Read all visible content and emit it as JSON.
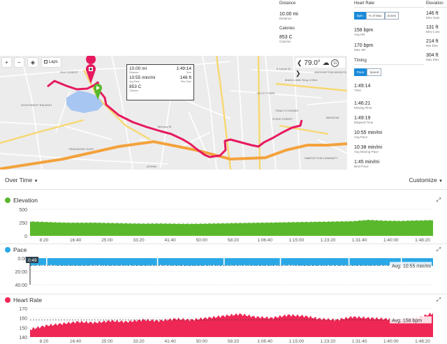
{
  "stats": {
    "distance": {
      "head": "Distance",
      "value": "10.00 mi",
      "sub": "Distance"
    },
    "calories": {
      "head": "Calories",
      "value": "853 C",
      "sub": "Calories"
    }
  },
  "heart_rate": {
    "head": "Heart Rate",
    "tabs": [
      "bpm",
      "% of Max",
      "Zones"
    ],
    "avg": {
      "value": "158 bpm",
      "sub": "Avg HR"
    },
    "max": {
      "value": "170 bpm",
      "sub": "Max HR"
    }
  },
  "timing": {
    "head": "Timing",
    "tabs": [
      "Pace",
      "Speed"
    ],
    "rows": [
      {
        "value": "1:49:14",
        "sub": "Time"
      },
      {
        "value": "1:46:21",
        "sub": "Moving Time"
      },
      {
        "value": "1:49:19",
        "sub": "Elapsed Time"
      },
      {
        "value": "10:55 min/mi",
        "sub": "Avg Pace"
      },
      {
        "value": "10:38 min/mi",
        "sub": "Avg Moving Pace"
      },
      {
        "value": "1:45 min/mi",
        "sub": "Best Pace"
      }
    ]
  },
  "elevation": {
    "head": "Elevation",
    "rows": [
      {
        "value": "146 ft",
        "sub": "Elev Gain"
      },
      {
        "value": "131 ft",
        "sub": "Elev Loss"
      },
      {
        "value": "214 ft",
        "sub": "Min Elev"
      },
      {
        "value": "304 ft",
        "sub": "Max Elev"
      }
    ]
  },
  "map": {
    "zoom_in": "+",
    "zoom_out": "−",
    "laps_label": "Laps",
    "temperature": "79.0°",
    "wind": "11",
    "places": {
      "isle_forest": "ISLE FOREST",
      "washington_heights": "WASHINGTON HEIGHTS",
      "south_park": "SOUTH PARK",
      "trails_corner": "TRAIL'S CORNER",
      "southwest_raleigh": "SOUTHWEST RALEIGH",
      "trailwood_glen": "TRAILWOOD GLEN",
      "atkins": "ATKINS",
      "meadow": "MEADOW",
      "habitat": "HABITAT FOR HUMANITY",
      "state_street": "STATE STREET",
      "forest_hills": "FOREST HILLS",
      "e_lenoir": "E Lenoir St",
      "mlk": "Martin Luther King Jr Blvd",
      "mercury": "Mercury St"
    },
    "popup": {
      "rows": [
        {
          "left": "10.00 mi",
          "left_sub": "Distance",
          "right": "1:49:14",
          "right_sub": "Time"
        },
        {
          "left": "10:55 min/mi",
          "left_sub": "Avg Pace",
          "right": "146 ft",
          "right_sub": "Elev Gain"
        },
        {
          "left": "853 C",
          "left_sub": "Calories",
          "right": "",
          "right_sub": ""
        }
      ]
    }
  },
  "over_time": {
    "label": "Over Time",
    "customize": "Customize"
  },
  "charts": {
    "colors": {
      "elevation": "#5ab82c",
      "pace": "#2aa8e6",
      "heart_rate": "#ee2755"
    },
    "x_ticks": [
      "8:20",
      "16:40",
      "25:00",
      "33:20",
      "41:40",
      "50:00",
      "58:20",
      "1:06:40",
      "1:15:00",
      "1:23:20",
      "1:31:40",
      "1:40:00",
      "1:48:20"
    ]
  },
  "chart_data": [
    {
      "type": "area",
      "title": "Elevation",
      "yticks": [
        "500",
        "250",
        "0"
      ],
      "ylim": [
        0,
        500
      ],
      "series": [
        {
          "values": [
            270,
            260,
            250,
            245,
            248,
            240,
            235,
            230,
            232,
            228,
            225,
            230,
            235,
            240,
            245,
            250,
            255,
            260,
            265,
            270,
            275,
            300,
            285,
            280,
            290,
            295
          ]
        }
      ]
    },
    {
      "type": "area",
      "title": "Pace",
      "yticks": [
        "0:00",
        "20:00",
        "40:00"
      ],
      "ylim": [
        0,
        40
      ],
      "indicator": "0:49",
      "avg_label": "Avg: 10:55 min/mi",
      "series": [
        {
          "values": [
            11,
            10.5,
            11,
            11.2,
            10.8,
            11,
            10.9,
            11.1,
            10.7,
            11,
            11.3,
            10.9,
            11,
            10.8,
            11.1,
            11,
            10.6,
            11.2,
            11,
            10.9,
            11,
            11.1,
            10.8,
            11,
            10.9,
            11
          ]
        }
      ]
    },
    {
      "type": "area",
      "title": "Heart Rate",
      "yticks": [
        "170",
        "160",
        "150",
        "140"
      ],
      "ylim": [
        140,
        170
      ],
      "avg_label": "Avg: 158 bpm",
      "series": [
        {
          "values": [
            148,
            152,
            154,
            156,
            155,
            157,
            156,
            158,
            157,
            159,
            158,
            160,
            162,
            164,
            161,
            160,
            163,
            162,
            159,
            158,
            161,
            160,
            159,
            158,
            160,
            165
          ]
        }
      ]
    }
  ]
}
